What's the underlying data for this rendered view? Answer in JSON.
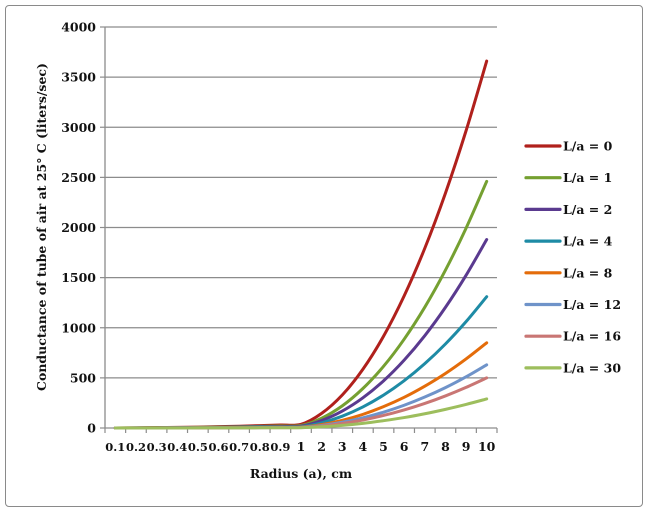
{
  "chart_data": {
    "type": "line",
    "title": "",
    "xlabel": "Radius (a), cm",
    "ylabel": "Conductance of tube of air at 25° C (liters/sec)",
    "ylim": [
      0,
      4000
    ],
    "yticks": [
      0,
      500,
      1000,
      1500,
      2000,
      2500,
      3000,
      3500,
      4000
    ],
    "grid": true,
    "legend": "right",
    "categories": [
      "0.1",
      "0.2",
      "0.3",
      "0.4",
      "0.5",
      "0.6",
      "0.7",
      "0.8",
      "0.9",
      "1",
      "2",
      "3",
      "4",
      "5",
      "6",
      "7",
      "8",
      "9",
      "10"
    ],
    "series": [
      {
        "name": "L/a = 0",
        "color": "#b0201c",
        "values": [
          0.4,
          1.5,
          3.3,
          5.9,
          9.2,
          13.2,
          17.9,
          23.4,
          29.6,
          36.6,
          146,
          329,
          586,
          915,
          1318,
          1793,
          2342,
          2965,
          3660
        ]
      },
      {
        "name": "L/a = 1",
        "color": "#75a031",
        "values": [
          0.2,
          1,
          2.2,
          3.9,
          6.2,
          8.9,
          12.1,
          15.7,
          19.9,
          24.6,
          98,
          221,
          394,
          615,
          886,
          1205,
          1574,
          1993,
          2460
        ]
      },
      {
        "name": "L/a = 2",
        "color": "#5a3a8f",
        "values": [
          0.2,
          0.8,
          1.7,
          3,
          4.7,
          6.8,
          9.2,
          12,
          15.2,
          18.8,
          75,
          169,
          301,
          470,
          677,
          921,
          1203,
          1523,
          1880
        ]
      },
      {
        "name": "L/a = 4",
        "color": "#1e8ba5",
        "values": [
          0.1,
          0.5,
          1.2,
          2.1,
          3.3,
          4.7,
          6.4,
          8.4,
          10.6,
          13.1,
          52,
          118,
          210,
          328,
          472,
          642,
          838,
          1061,
          1310
        ]
      },
      {
        "name": "L/a = 8",
        "color": "#e46c0a",
        "values": [
          0.1,
          0.3,
          0.8,
          1.4,
          2.1,
          3.1,
          4.2,
          5.4,
          6.9,
          8.5,
          34,
          77,
          136,
          213,
          306,
          417,
          544,
          689,
          850
        ]
      },
      {
        "name": "L/a = 12",
        "color": "#6f93c9",
        "values": [
          0.1,
          0.3,
          0.6,
          1,
          1.6,
          2.3,
          3.1,
          4,
          5.1,
          6.3,
          25,
          57,
          101,
          158,
          227,
          309,
          403,
          510,
          630
        ]
      },
      {
        "name": "L/a = 16",
        "color": "#c97674",
        "values": [
          0.1,
          0.2,
          0.5,
          0.8,
          1.3,
          1.8,
          2.5,
          3.2,
          4.1,
          5,
          20,
          45,
          80,
          125,
          180,
          245,
          320,
          405,
          500
        ]
      },
      {
        "name": "L/a = 30",
        "color": "#9dbe5d",
        "values": [
          0,
          0.1,
          0.3,
          0.5,
          0.7,
          1,
          1.4,
          1.9,
          2.3,
          2.9,
          12,
          26,
          46,
          73,
          104,
          142,
          186,
          235,
          290
        ]
      }
    ]
  }
}
